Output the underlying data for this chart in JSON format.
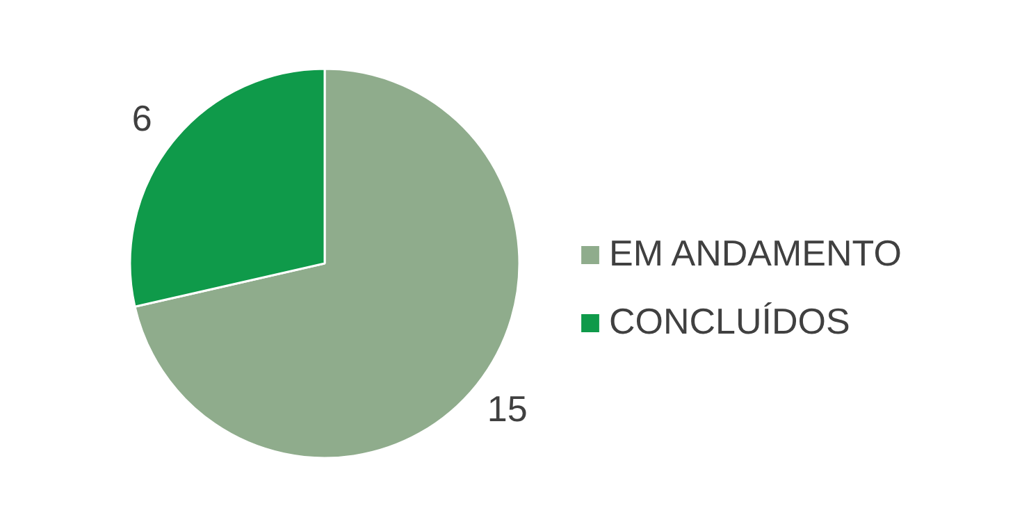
{
  "chart_data": {
    "type": "pie",
    "categories": [
      "EM ANDAMENTO",
      "CONCLUÍDOS"
    ],
    "values": [
      15,
      6
    ],
    "colors": [
      "#8fac8c",
      "#0f9a4a"
    ],
    "data_labels": true,
    "legend": "right"
  }
}
